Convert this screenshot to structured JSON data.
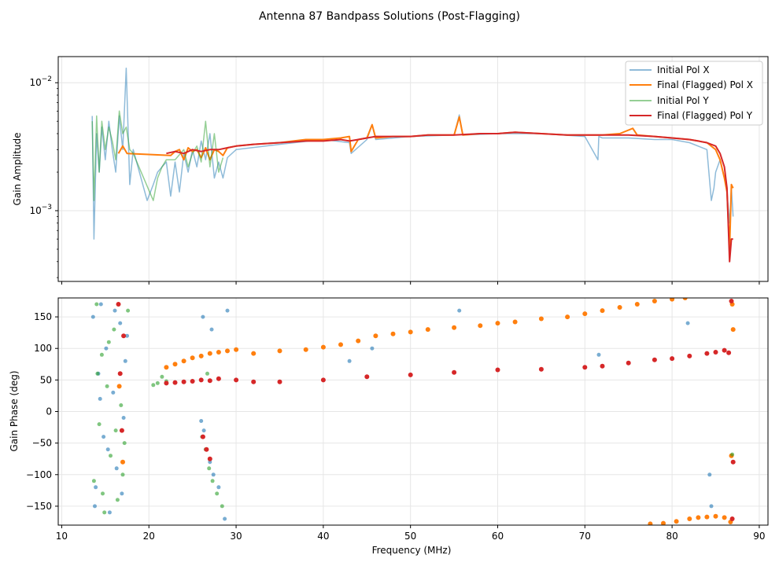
{
  "figure": {
    "title": "Antenna 87 Bandpass Solutions (Post-Flagging)"
  },
  "colors": {
    "initial_x": "#1f77b4",
    "final_x": "#ff7f0e",
    "initial_y": "#2ca02c",
    "final_y": "#d62728",
    "grid": "#e6e6e6"
  },
  "chart_data": [
    {
      "type": "line",
      "panel": "amplitude",
      "xlabel": "",
      "ylabel": "Gain Amplitude",
      "yscale": "log",
      "xlim": [
        9.6,
        91
      ],
      "ylim": [
        0.00028,
        0.016
      ],
      "x_ticks": [
        10,
        20,
        30,
        40,
        50,
        60,
        70,
        80,
        90
      ],
      "y_ticks": [
        {
          "value": 0.01,
          "base": "10",
          "exp": "−2"
        },
        {
          "value": 0.001,
          "base": "10",
          "exp": "−3"
        }
      ],
      "grid": true,
      "legend": {
        "position": "top-right",
        "entries": [
          "Initial Pol X",
          "Final (Flagged) Pol X",
          "Initial Pol Y",
          "Final (Flagged) Pol Y"
        ]
      },
      "series": [
        {
          "name": "Initial Pol X",
          "color": "#1f77b4",
          "x": [
            13.5,
            13.7,
            14,
            14.3,
            14.6,
            15,
            15.4,
            15.8,
            16.2,
            16.6,
            17,
            17.4,
            17.8,
            18.2,
            19.8,
            20.5,
            21,
            21.5,
            22,
            22.5,
            23,
            23.5,
            24,
            24.5,
            25,
            25.5,
            26,
            26.5,
            27,
            27.5,
            28,
            28.5,
            29,
            30,
            35,
            40,
            43,
            43.2,
            45,
            45.6,
            46,
            50,
            55,
            55.6,
            56,
            60,
            65,
            70,
            71.5,
            71.6,
            72,
            75,
            78,
            80,
            82,
            84,
            84.5,
            84.8,
            85,
            85.5,
            86,
            86.3,
            86.6,
            86.8,
            87
          ],
          "y": [
            0.0055,
            0.0006,
            0.004,
            0.002,
            0.0045,
            0.0025,
            0.005,
            0.003,
            0.002,
            0.0055,
            0.003,
            0.013,
            0.0016,
            0.003,
            0.0012,
            0.0016,
            0.002,
            0.0022,
            0.0024,
            0.0013,
            0.0024,
            0.0014,
            0.0028,
            0.002,
            0.003,
            0.0022,
            0.0035,
            0.0025,
            0.004,
            0.0018,
            0.0024,
            0.0018,
            0.0026,
            0.003,
            0.0033,
            0.0036,
            0.0034,
            0.0028,
            0.0036,
            0.0047,
            0.0036,
            0.0038,
            0.0039,
            0.0056,
            0.0039,
            0.004,
            0.004,
            0.0038,
            0.0025,
            0.0038,
            0.0037,
            0.0037,
            0.0036,
            0.0036,
            0.0034,
            0.003,
            0.0012,
            0.0015,
            0.002,
            0.0025,
            0.0018,
            0.0014,
            0.0008,
            0.0015,
            0.0009
          ]
        },
        {
          "name": "Final (Flagged) Pol X",
          "color": "#ff7f0e",
          "x": [
            16.5,
            17,
            17.5,
            22.5,
            23,
            23.5,
            24,
            24.5,
            25,
            25.5,
            26,
            26.5,
            27,
            27.5,
            28,
            28.5,
            29,
            30,
            32,
            35,
            38,
            40,
            42,
            43,
            43.2,
            44,
            45,
            45.6,
            46,
            48,
            50,
            52,
            55,
            55.6,
            56,
            58,
            60,
            62,
            65,
            68,
            70,
            72,
            74,
            75.5,
            76,
            78,
            80,
            82,
            83,
            84,
            85,
            85.5,
            86,
            86.3,
            86.6,
            86.8,
            87
          ],
          "y": [
            0.0028,
            0.0032,
            0.0028,
            0.0027,
            0.0029,
            0.003,
            0.0025,
            0.0031,
            0.0029,
            0.003,
            0.0026,
            0.0031,
            0.0025,
            0.003,
            0.0029,
            0.0027,
            0.0031,
            0.0032,
            0.0033,
            0.0034,
            0.0036,
            0.0036,
            0.0037,
            0.0038,
            0.0029,
            0.0036,
            0.0037,
            0.0047,
            0.0037,
            0.0038,
            0.0038,
            0.0039,
            0.0039,
            0.0054,
            0.0039,
            0.004,
            0.004,
            0.0041,
            0.004,
            0.0039,
            0.0039,
            0.0039,
            0.004,
            0.0044,
            0.0039,
            0.0038,
            0.0037,
            0.0036,
            0.0035,
            0.0034,
            0.003,
            0.0025,
            0.0018,
            0.0014,
            0.0005,
            0.0016,
            0.0015
          ]
        },
        {
          "name": "Initial Pol Y",
          "color": "#2ca02c",
          "x": [
            13.5,
            13.7,
            14,
            14.3,
            14.6,
            15,
            15.4,
            15.8,
            16.2,
            16.6,
            17,
            17.4,
            17.8,
            18.2,
            20.5,
            21,
            21.5,
            22,
            23,
            24,
            24.5,
            25,
            25.5,
            26,
            26.5,
            27,
            27.5,
            28,
            28.5
          ],
          "y": [
            0.005,
            0.0012,
            0.0055,
            0.002,
            0.005,
            0.003,
            0.0045,
            0.0035,
            0.0025,
            0.006,
            0.004,
            0.0045,
            0.003,
            0.0028,
            0.0012,
            0.0018,
            0.0022,
            0.0025,
            0.0025,
            0.003,
            0.0022,
            0.0028,
            0.0032,
            0.0024,
            0.005,
            0.0022,
            0.004,
            0.002,
            0.0026
          ]
        },
        {
          "name": "Final (Flagged) Pol Y",
          "color": "#d62728",
          "x": [
            22,
            23,
            24,
            25,
            26,
            27,
            28,
            29,
            30,
            32,
            35,
            38,
            40,
            42,
            43,
            44,
            45,
            46,
            48,
            50,
            52,
            55,
            58,
            60,
            62,
            65,
            68,
            70,
            72,
            75,
            78,
            80,
            82,
            83,
            84,
            85,
            85.5,
            86,
            86.3,
            86.6,
            86.8,
            87
          ],
          "y": [
            0.0028,
            0.0029,
            0.0028,
            0.003,
            0.0029,
            0.003,
            0.003,
            0.0031,
            0.0032,
            0.0033,
            0.0034,
            0.0035,
            0.0035,
            0.0036,
            0.0035,
            0.0036,
            0.0037,
            0.0038,
            0.0038,
            0.0038,
            0.0039,
            0.0039,
            0.004,
            0.004,
            0.0041,
            0.004,
            0.0039,
            0.0039,
            0.0039,
            0.0039,
            0.0038,
            0.0037,
            0.0036,
            0.0035,
            0.0034,
            0.0032,
            0.0028,
            0.0022,
            0.0015,
            0.0004,
            0.0006,
            0.0006
          ]
        }
      ]
    },
    {
      "type": "scatter",
      "panel": "phase",
      "xlabel": "Frequency (MHz)",
      "ylabel": "Gain Phase (deg)",
      "xlim": [
        9.6,
        91
      ],
      "ylim": [
        -180,
        180
      ],
      "x_ticks": [
        10,
        20,
        30,
        40,
        50,
        60,
        70,
        80,
        90
      ],
      "y_ticks": [
        150,
        100,
        50,
        0,
        -50,
        -100,
        -150
      ],
      "grid": true,
      "series": [
        {
          "name": "Initial Pol X",
          "color": "#1f77b4",
          "x": [
            13.6,
            13.9,
            14.2,
            14.5,
            14.8,
            15.1,
            15.5,
            15.9,
            16.3,
            16.7,
            17.1,
            17.5,
            13.8,
            14.4,
            15.3,
            16.1,
            16.9,
            17.3,
            26,
            26.3,
            26.6,
            27,
            27.4,
            28,
            28.7,
            26.2,
            27.2,
            29,
            43,
            45.6,
            55.6,
            71.6,
            81.8,
            84.3,
            84.5
          ],
          "y": [
            150,
            -120,
            60,
            170,
            -40,
            100,
            -160,
            30,
            -90,
            140,
            -10,
            120,
            -150,
            20,
            -60,
            160,
            -130,
            80,
            -15,
            -30,
            -60,
            -80,
            -100,
            -120,
            -170,
            150,
            130,
            160,
            80,
            100,
            160,
            90,
            140,
            -100,
            -150
          ]
        },
        {
          "name": "Final (Flagged) Pol X",
          "color": "#ff7f0e",
          "x": [
            16.6,
            17,
            22,
            23,
            24,
            25,
            26,
            27,
            28,
            29,
            30,
            32,
            35,
            38,
            40,
            42,
            44,
            46,
            48,
            50,
            52,
            55,
            58,
            60,
            62,
            65,
            68,
            70,
            72,
            74,
            76,
            78,
            80,
            81.5,
            77.5,
            79,
            80.5,
            82,
            83,
            84,
            85,
            86,
            86.7,
            86.9,
            87,
            86.8
          ],
          "y": [
            40,
            -80,
            70,
            75,
            80,
            85,
            88,
            92,
            94,
            96,
            98,
            92,
            96,
            98,
            102,
            106,
            112,
            120,
            123,
            126,
            130,
            133,
            136,
            140,
            142,
            147,
            150,
            155,
            160,
            165,
            170,
            175,
            178,
            180,
            -178,
            -177,
            -174,
            -170,
            -168,
            -167,
            -166,
            -168,
            -175,
            170,
            130,
            -70
          ]
        },
        {
          "name": "Initial Pol Y",
          "color": "#2ca02c",
          "x": [
            13.7,
            14,
            14.3,
            14.6,
            14.9,
            15.2,
            15.6,
            16,
            16.4,
            16.8,
            17.2,
            17.6,
            14.1,
            14.7,
            15.4,
            16.2,
            17,
            20.5,
            21,
            21.5,
            22,
            26.1,
            26.5,
            26.9,
            27.3,
            27.8,
            28.4,
            26.7,
            86.9
          ],
          "y": [
            -110,
            170,
            -20,
            90,
            -160,
            40,
            -70,
            130,
            -140,
            10,
            -50,
            160,
            60,
            -130,
            110,
            -30,
            -100,
            42,
            45,
            55,
            48,
            -40,
            -60,
            -90,
            -110,
            -130,
            -150,
            60,
            -68
          ]
        },
        {
          "name": "Final (Flagged) Pol Y",
          "color": "#d62728",
          "x": [
            16.5,
            16.7,
            16.9,
            17.1,
            22,
            23,
            24,
            25,
            26,
            27,
            28,
            30,
            32,
            35,
            40,
            45,
            50,
            55,
            60,
            65,
            70,
            72,
            75,
            78,
            80,
            82,
            84,
            85,
            86,
            86.5,
            86.8,
            86.9,
            87,
            26.2,
            26.6,
            27
          ],
          "y": [
            170,
            60,
            -30,
            120,
            45,
            46,
            47,
            48,
            50,
            49,
            52,
            50,
            47,
            47,
            50,
            55,
            58,
            62,
            66,
            67,
            70,
            72,
            77,
            82,
            84,
            88,
            92,
            94,
            97,
            93,
            175,
            -170,
            -80,
            -40,
            -60,
            -75
          ]
        }
      ]
    }
  ]
}
